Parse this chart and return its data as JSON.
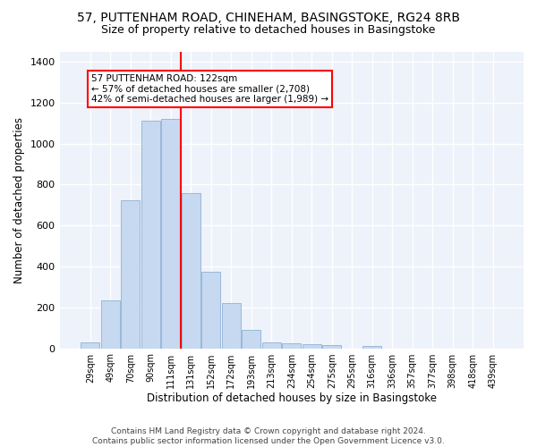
{
  "title1": "57, PUTTENHAM ROAD, CHINEHAM, BASINGSTOKE, RG24 8RB",
  "title2": "Size of property relative to detached houses in Basingstoke",
  "xlabel": "Distribution of detached houses by size in Basingstoke",
  "ylabel": "Number of detached properties",
  "footnote": "Contains HM Land Registry data © Crown copyright and database right 2024.\nContains public sector information licensed under the Open Government Licence v3.0.",
  "bar_labels": [
    "29sqm",
    "49sqm",
    "70sqm",
    "90sqm",
    "111sqm",
    "131sqm",
    "152sqm",
    "172sqm",
    "193sqm",
    "213sqm",
    "234sqm",
    "254sqm",
    "275sqm",
    "295sqm",
    "316sqm",
    "336sqm",
    "357sqm",
    "377sqm",
    "398sqm",
    "418sqm",
    "439sqm"
  ],
  "bar_values": [
    30,
    235,
    725,
    1110,
    1120,
    760,
    375,
    220,
    90,
    30,
    25,
    20,
    15,
    0,
    10,
    0,
    0,
    0,
    0,
    0,
    0
  ],
  "bar_color": "#c6d9f1",
  "bar_edge_color": "#9ab8d8",
  "vline_x_idx": 4.5,
  "vline_label": "57 PUTTENHAM ROAD: 122sqm",
  "annotation_line1": "← 57% of detached houses are smaller (2,708)",
  "annotation_line2": "42% of semi-detached houses are larger (1,989) →",
  "annotation_box_color": "white",
  "annotation_box_edge": "red",
  "vline_color": "red",
  "ylim": [
    0,
    1450
  ],
  "yticks": [
    0,
    200,
    400,
    600,
    800,
    1000,
    1200,
    1400
  ],
  "background_color": "#eef2fa",
  "grid_color": "white",
  "title1_fontsize": 10,
  "title2_fontsize": 9,
  "xlabel_fontsize": 8.5,
  "ylabel_fontsize": 8.5,
  "footnote_fontsize": 6.5
}
